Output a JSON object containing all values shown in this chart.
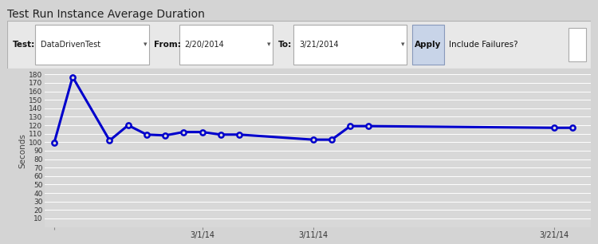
{
  "title": "Test Run Instance Average Duration",
  "ylabel": "Seconds",
  "ylim": [
    0,
    180
  ],
  "yticks": [
    10,
    20,
    30,
    40,
    50,
    60,
    70,
    80,
    90,
    100,
    110,
    120,
    130,
    140,
    150,
    160,
    170,
    180
  ],
  "fig_bg_color": "#d4d4d4",
  "plot_bg_color": "#d8d8d8",
  "line_color": "#0000cc",
  "marker_face_color": "#d8d8d8",
  "marker_edge_color": "#0000cc",
  "grid_color": "#c0c0c0",
  "x_values": [
    0,
    1,
    3,
    4,
    5,
    6,
    7,
    8,
    9,
    10,
    14,
    15,
    16,
    17,
    27,
    28
  ],
  "y_values": [
    99,
    177,
    102,
    120,
    109,
    108,
    112,
    112,
    109,
    109,
    103,
    103,
    119,
    119,
    117,
    117
  ],
  "xtick_positions": [
    0,
    8,
    14,
    27
  ],
  "xtick_labels": [
    "",
    "3/1/14",
    "3/11/14",
    "3/21/14"
  ],
  "toolbar_bg": "#e8e8e8",
  "toolbar_label_test": "Test:",
  "toolbar_test_value": "DataDrivenTest",
  "toolbar_label_from": "From:",
  "toolbar_from_value": "2/20/2014",
  "toolbar_label_to": "To:",
  "toolbar_to_value": "3/21/2014",
  "toolbar_apply": "Apply",
  "toolbar_include": "Include Failures?"
}
